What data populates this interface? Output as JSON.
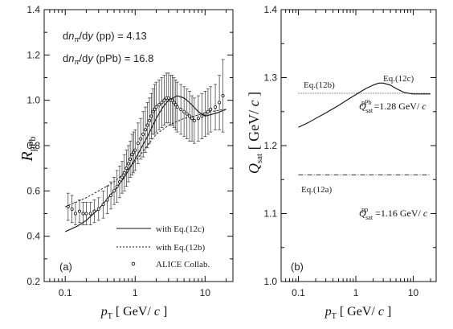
{
  "chart_data": [
    {
      "type": "line",
      "panel_label": "(a)",
      "xlabel": "p_T [ GeV/ c ]",
      "ylabel": "R_pPb",
      "xscale": "log",
      "xlim": [
        0.05,
        25
      ],
      "ylim": [
        0.2,
        1.4
      ],
      "x_ticks": [
        "0.1",
        "1",
        "10"
      ],
      "y_ticks": [
        "0.2",
        "0.4",
        "0.6",
        "0.8",
        "1.0",
        "1.2",
        "1.4"
      ],
      "annotations": [
        "dn_π/dy (pp)  = 4.13",
        "dn_π/dy (pPb) = 16.8"
      ],
      "legend_position": "bottom-right",
      "series": [
        {
          "name": "with Eq.(12c)",
          "style": "solid",
          "x": [
            0.1,
            0.15,
            0.2,
            0.3,
            0.5,
            0.7,
            1.0,
            1.5,
            2.0,
            2.5,
            3.0,
            4.0,
            5.0,
            6.0,
            8.0,
            10.0,
            15.0,
            20.0
          ],
          "y": [
            0.42,
            0.445,
            0.47,
            0.52,
            0.6,
            0.66,
            0.74,
            0.84,
            0.92,
            0.97,
            1.0,
            1.02,
            1.01,
            0.99,
            0.95,
            0.93,
            0.945,
            0.96
          ]
        },
        {
          "name": "with Eq.(12b)",
          "style": "dashed",
          "x": [
            0.1,
            0.2,
            0.3,
            0.5,
            0.7,
            1.0,
            1.5,
            2.0,
            3.0,
            5.0,
            7.0,
            10.0,
            15.0,
            20.0
          ],
          "y": [
            0.53,
            0.57,
            0.6,
            0.64,
            0.68,
            0.73,
            0.8,
            0.85,
            0.89,
            0.92,
            0.93,
            0.945,
            0.955,
            0.96
          ]
        },
        {
          "name": "ALICE Collab.",
          "style": "points",
          "x": [
            0.11,
            0.125,
            0.14,
            0.16,
            0.18,
            0.2,
            0.23,
            0.26,
            0.3,
            0.35,
            0.4,
            0.45,
            0.5,
            0.55,
            0.6,
            0.65,
            0.7,
            0.75,
            0.8,
            0.85,
            0.9,
            0.95,
            1.0,
            1.1,
            1.2,
            1.3,
            1.4,
            1.5,
            1.6,
            1.7,
            1.8,
            1.9,
            2.0,
            2.2,
            2.4,
            2.6,
            2.8,
            3.0,
            3.2,
            3.4,
            3.6,
            3.8,
            4.0,
            4.5,
            5.0,
            5.5,
            6.0,
            6.5,
            7.0,
            8.0,
            9.0,
            10.0,
            11.0,
            12.0,
            14.0,
            16.0,
            18.0
          ],
          "y": [
            0.53,
            0.52,
            0.5,
            0.51,
            0.5,
            0.5,
            0.5,
            0.51,
            0.52,
            0.54,
            0.56,
            0.58,
            0.6,
            0.62,
            0.64,
            0.66,
            0.68,
            0.7,
            0.72,
            0.74,
            0.76,
            0.77,
            0.78,
            0.81,
            0.83,
            0.85,
            0.87,
            0.89,
            0.91,
            0.93,
            0.95,
            0.96,
            0.97,
            0.98,
            0.99,
            1.0,
            1.01,
            1.01,
            1.0,
            1.0,
            0.99,
            0.98,
            0.97,
            0.96,
            0.95,
            0.94,
            0.93,
            0.92,
            0.91,
            0.92,
            0.93,
            0.94,
            0.95,
            0.96,
            0.97,
            0.99,
            1.02
          ],
          "err": [
            0.06,
            0.06,
            0.05,
            0.05,
            0.05,
            0.05,
            0.05,
            0.05,
            0.05,
            0.06,
            0.06,
            0.06,
            0.06,
            0.07,
            0.07,
            0.07,
            0.08,
            0.08,
            0.08,
            0.08,
            0.09,
            0.09,
            0.09,
            0.09,
            0.09,
            0.1,
            0.1,
            0.1,
            0.1,
            0.1,
            0.1,
            0.11,
            0.11,
            0.11,
            0.11,
            0.11,
            0.11,
            0.11,
            0.11,
            0.11,
            0.11,
            0.11,
            0.11,
            0.11,
            0.11,
            0.11,
            0.11,
            0.1,
            0.1,
            0.1,
            0.1,
            0.1,
            0.1,
            0.1,
            0.1,
            0.12,
            0.16
          ]
        }
      ]
    },
    {
      "type": "line",
      "panel_label": "(b)",
      "xlabel": "p_T [ GeV/ c ]",
      "ylabel": "Q_sat [ GeV/ c ]",
      "xscale": "log",
      "xlim": [
        0.05,
        25
      ],
      "ylim": [
        1.0,
        1.4
      ],
      "x_ticks": [
        "0.1",
        "1",
        "10"
      ],
      "y_ticks": [
        "1.0",
        "1.1",
        "1.2",
        "1.3",
        "1.4"
      ],
      "series": [
        {
          "name": "Eq.(12c)",
          "style": "solid",
          "x": [
            0.1,
            0.15,
            0.2,
            0.3,
            0.5,
            0.7,
            1.0,
            1.5,
            2.0,
            2.5,
            3.0,
            4.0,
            5.0,
            7.0,
            10.0,
            15.0,
            20.0
          ],
          "y": [
            1.227,
            1.234,
            1.24,
            1.248,
            1.259,
            1.267,
            1.275,
            1.284,
            1.289,
            1.292,
            1.292,
            1.289,
            1.284,
            1.278,
            1.276,
            1.276,
            1.276
          ]
        },
        {
          "name": "Eq.(12b)",
          "style": "dotted",
          "x": [
            0.1,
            20.0
          ],
          "y": [
            1.277,
            1.277
          ]
        },
        {
          "name": "Eq.(12a)",
          "style": "dashdot",
          "x": [
            0.1,
            20.0
          ],
          "y": [
            1.157,
            1.157
          ]
        }
      ],
      "annotations": [
        "Q_sat^pPb =1.28 GeV/ c",
        "Q_sat^pp =1.16 GeV/ c"
      ]
    }
  ]
}
